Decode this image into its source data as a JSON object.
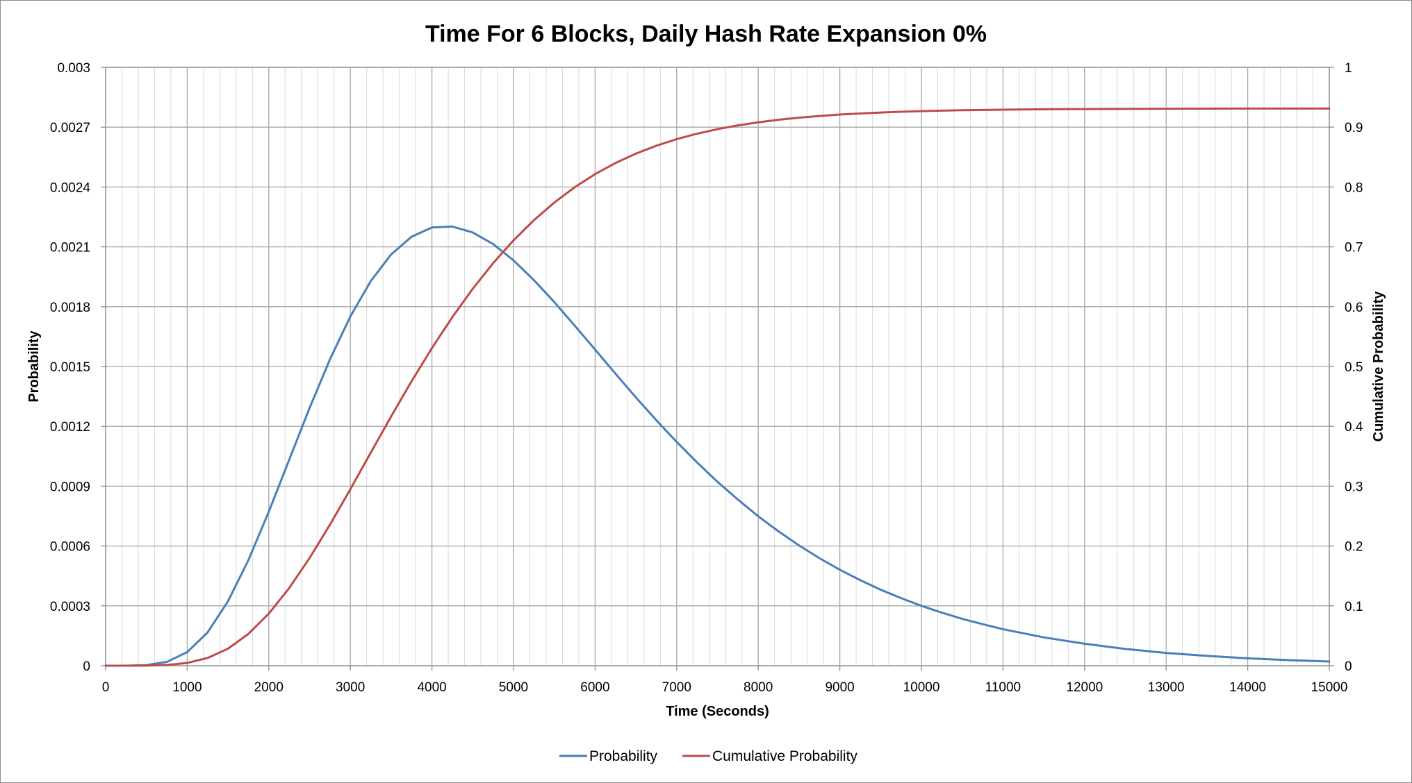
{
  "chart_data": {
    "type": "line",
    "title": "Time For 6 Blocks, Daily Hash Rate Expansion 0%",
    "xlabel": "Time (Seconds)",
    "ylabel": "Probability",
    "y2label": "Cumulative Probability",
    "xlim": [
      0,
      15000
    ],
    "ylim": [
      0,
      0.003
    ],
    "y2lim": [
      0,
      1
    ],
    "x_ticks": [
      "0",
      "1000",
      "2000",
      "3000",
      "4000",
      "5000",
      "6000",
      "7000",
      "8000",
      "9000",
      "10000",
      "11000",
      "12000",
      "13000",
      "14000",
      "15000"
    ],
    "y_ticks": [
      "0",
      "0.0003",
      "0.0006",
      "0.0009",
      "0.0012",
      "0.0015",
      "0.0018",
      "0.0021",
      "0.0024",
      "0.0027",
      "0.003"
    ],
    "y2_ticks": [
      "0",
      "0.1",
      "0.2",
      "0.3",
      "0.4",
      "0.5",
      "0.6",
      "0.7",
      "0.8",
      "0.9",
      "1"
    ],
    "grid": true,
    "legend_position": "bottom",
    "series": [
      {
        "name": "Probability",
        "axis": "left",
        "color": "#4a7ebb",
        "x": [
          0,
          250,
          500,
          750,
          1000,
          1250,
          1500,
          1750,
          2000,
          2250,
          2500,
          2750,
          3000,
          3250,
          3500,
          3750,
          4000,
          4250,
          4500,
          4750,
          5000,
          5250,
          5500,
          5750,
          6000,
          6250,
          6500,
          6750,
          7000,
          7250,
          7500,
          7750,
          8000,
          8250,
          8500,
          8750,
          9000,
          9250,
          9500,
          9750,
          10000,
          10250,
          10500,
          10750,
          11000,
          11500,
          12000,
          12500,
          13000,
          13500,
          14000,
          14500,
          15000
        ],
        "values": [
          0,
          0.0,
          3e-06,
          1.9e-05,
          6.8e-05,
          0.000167,
          0.000323,
          0.000529,
          0.000772,
          0.001032,
          0.001292,
          0.001536,
          0.001751,
          0.001928,
          0.002062,
          0.002151,
          0.002197,
          0.002202,
          0.002172,
          0.002114,
          0.002032,
          0.001933,
          0.001823,
          0.001705,
          0.001585,
          0.001464,
          0.001345,
          0.001231,
          0.001122,
          0.001019,
          0.000922,
          0.000833,
          0.000749,
          0.000673,
          0.000603,
          0.000539,
          0.000481,
          0.000429,
          0.000381,
          0.000339,
          0.0003,
          0.000266,
          0.000235,
          0.000208,
          0.000183,
          0.000142,
          0.00011,
          8.4e-05,
          6.4e-05,
          4.9e-05,
          3.7e-05,
          2.8e-05,
          2.1e-05
        ]
      },
      {
        "name": "Cumulative Probability",
        "axis": "right",
        "color": "#be4b48",
        "x": [
          0,
          250,
          500,
          750,
          1000,
          1250,
          1500,
          1750,
          2000,
          2250,
          2500,
          2750,
          3000,
          3250,
          3500,
          3750,
          4000,
          4250,
          4500,
          4750,
          5000,
          5250,
          5500,
          5750,
          6000,
          6250,
          6500,
          6750,
          7000,
          7250,
          7500,
          7750,
          8000,
          8250,
          8500,
          8750,
          9000,
          9250,
          9500,
          9750,
          10000,
          10250,
          10500,
          10750,
          11000,
          11500,
          12000,
          12500,
          13000,
          13500,
          14000,
          14500,
          15000
        ],
        "values": [
          0,
          0.0,
          0.0002,
          0.0011,
          0.0046,
          0.0129,
          0.0284,
          0.0531,
          0.087,
          0.1297,
          0.1799,
          0.2357,
          0.295,
          0.356,
          0.4166,
          0.4753,
          0.5308,
          0.5825,
          0.6299,
          0.6727,
          0.7108,
          0.7445,
          0.774,
          0.7996,
          0.8215,
          0.8401,
          0.8558,
          0.869,
          0.88,
          0.8891,
          0.8967,
          0.903,
          0.9081,
          0.9124,
          0.9159,
          0.9187,
          0.9211,
          0.9229,
          0.9245,
          0.9258,
          0.9268,
          0.9276,
          0.9283,
          0.9288,
          0.9293,
          0.9299,
          0.9303,
          0.9306,
          0.9308,
          0.931,
          0.9311,
          0.9311,
          0.9312
        ]
      }
    ]
  }
}
